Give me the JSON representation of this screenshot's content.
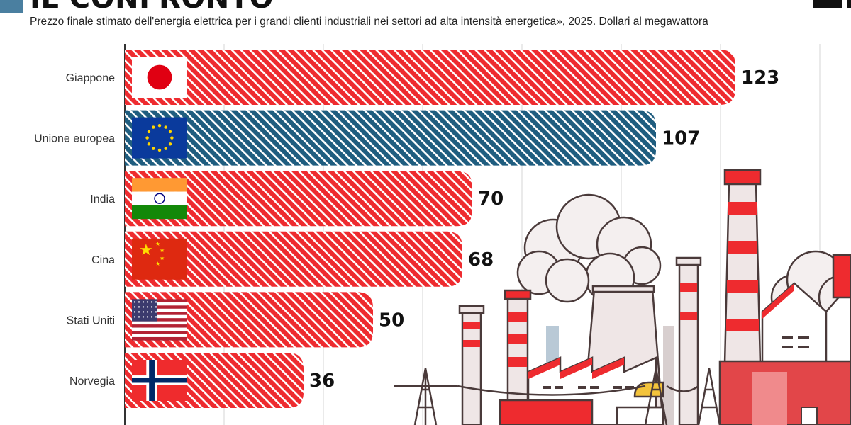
{
  "header": {
    "title": "IL CONFRONTO",
    "subtitle": "Prezzo finale stimato dell'energia elettrica per i grandi clienti industriali nei settori ad alta intensità energetica», 2025. Dollari al megawattora"
  },
  "colors": {
    "default_bar": "#ee2b2f",
    "highlight_bar": "#1f5d7f",
    "accent": "#4a7fa0"
  },
  "chart_data": {
    "type": "bar",
    "orientation": "horizontal",
    "title": "IL CONFRONTO",
    "subtitle": "Prezzo finale stimato dell'energia elettrica per i grandi clienti industriali nei settori ad alta intensità energetica», 2025. Dollari al megawattora",
    "categories": [
      "Giappone",
      "Unione europea",
      "India",
      "Cina",
      "Stati Uniti",
      "Norvegia"
    ],
    "values": [
      123,
      107,
      70,
      68,
      50,
      36
    ],
    "value_labels": [
      "123",
      "107",
      "70",
      "68",
      "50",
      "36"
    ],
    "flags": [
      "japan-flag-icon",
      "eu-flag-icon",
      "india-flag-icon",
      "china-flag-icon",
      "usa-flag-icon",
      "norway-flag-icon"
    ],
    "highlight_category": "Unione europea",
    "xlim": [
      0,
      140
    ],
    "grid": true,
    "legend": "none"
  }
}
